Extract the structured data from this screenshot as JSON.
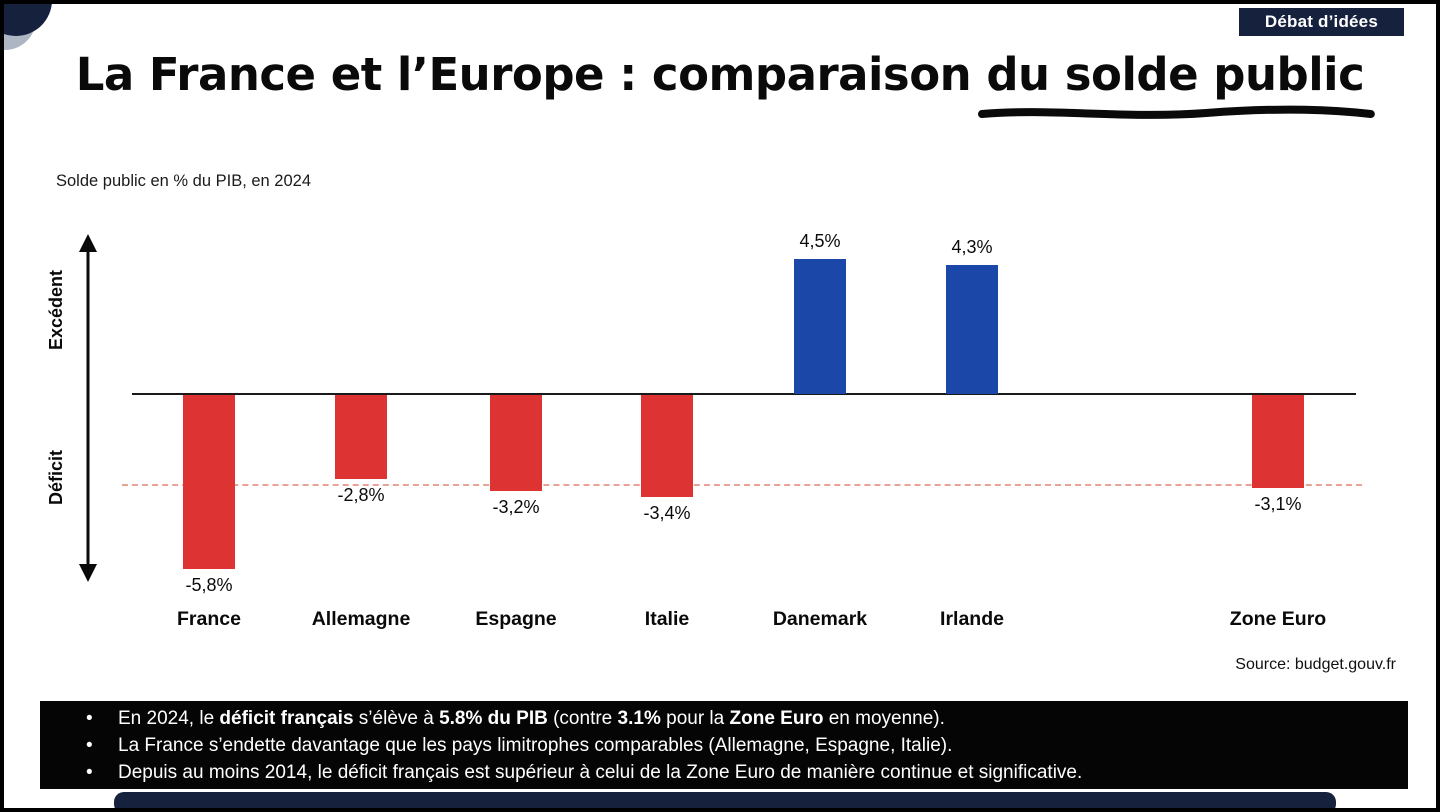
{
  "badge": {
    "label": "Débat d’idées"
  },
  "title": {
    "plain": "La France et l’Europe : comparaison ",
    "underlined": "du solde public"
  },
  "subtitle": "Solde public en % du PIB, en 2024",
  "axis_labels": {
    "positive": "Excédent",
    "negative": "Déficit"
  },
  "source": "Source: budget.gouv.fr",
  "colors": {
    "deficit_red": "#dd3333",
    "surplus_blue": "#1b47a8",
    "navy": "#16213e",
    "reference_line_red": "#eba296"
  },
  "chart_data": {
    "type": "bar",
    "title": "Solde public en % du PIB, en 2024",
    "categories": [
      "France",
      "Allemagne",
      "Espagne",
      "Italie",
      "Danemark",
      "Irlande",
      "Zone Euro"
    ],
    "values": [
      -5.8,
      -2.8,
      -3.2,
      -3.4,
      4.5,
      4.3,
      -3.1
    ],
    "value_labels": [
      "-5,8%",
      "-2,8%",
      "-3,2%",
      "-3,4%",
      "4,5%",
      "4,3%",
      "-3,1%"
    ],
    "xlabel": "",
    "ylabel": "Solde public en % du PIB",
    "ylim": [
      -6.3,
      5.2
    ],
    "reference_line": -3,
    "grid": false,
    "legend": false,
    "positive_color": "#1b47a8",
    "negative_color": "#dd3333"
  },
  "footer": {
    "bullets": [
      [
        {
          "text": "En 2024, le ",
          "bold": false
        },
        {
          "text": "déficit français",
          "bold": true
        },
        {
          "text": " s’élève à ",
          "bold": false
        },
        {
          "text": "5.8% du PIB",
          "bold": true
        },
        {
          "text": " (contre ",
          "bold": false
        },
        {
          "text": "3.1%",
          "bold": true
        },
        {
          "text": " pour la ",
          "bold": false
        },
        {
          "text": "Zone Euro",
          "bold": true
        },
        {
          "text": " en moyenne).",
          "bold": false
        }
      ],
      [
        {
          "text": "La France s’endette davantage que les pays limitrophes comparables (Allemagne, Espagne, Italie).",
          "bold": false
        }
      ],
      [
        {
          "text": "Depuis au moins 2014, le déficit français est supérieur à celui de la Zone Euro de manière continue et significative.",
          "bold": false
        }
      ]
    ]
  }
}
